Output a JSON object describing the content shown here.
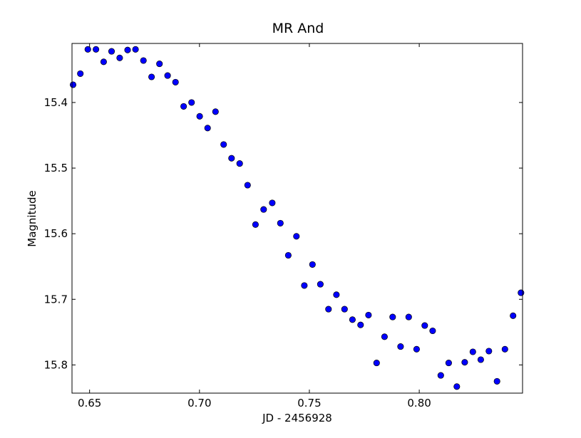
{
  "chart_data": {
    "type": "scatter",
    "title": "MR And",
    "xlabel": "JD - 2456928",
    "ylabel": "Magnitude",
    "xlim": [
      0.642,
      0.847
    ],
    "ylim": [
      15.843,
      15.31
    ],
    "y_inverted": true,
    "grid": false,
    "marker_color": "#0000ff",
    "marker_edge_color": "#000000",
    "x_ticks": [
      0.65,
      0.7,
      0.75,
      0.8
    ],
    "x_tick_labels": [
      "0.65",
      "0.70",
      "0.75",
      "0.80"
    ],
    "y_ticks": [
      15.4,
      15.5,
      15.6,
      15.7,
      15.8
    ],
    "y_tick_labels": [
      "15.4",
      "15.5",
      "15.6",
      "15.7",
      "15.8"
    ],
    "x": [
      0.6425,
      0.6458,
      0.6492,
      0.6529,
      0.6564,
      0.66,
      0.6637,
      0.6673,
      0.6709,
      0.6745,
      0.6782,
      0.6818,
      0.6855,
      0.6891,
      0.6928,
      0.6964,
      0.7001,
      0.7037,
      0.7073,
      0.711,
      0.7146,
      0.7183,
      0.7219,
      0.7255,
      0.7292,
      0.7331,
      0.7368,
      0.7404,
      0.7441,
      0.7477,
      0.7514,
      0.755,
      0.7587,
      0.7623,
      0.766,
      0.7696,
      0.7733,
      0.7769,
      0.7806,
      0.7842,
      0.7879,
      0.7915,
      0.7952,
      0.7988,
      0.8025,
      0.8061,
      0.8098,
      0.8134,
      0.8171,
      0.8207,
      0.8244,
      0.828,
      0.8317,
      0.8354,
      0.839,
      0.8427,
      0.8463
    ],
    "y": [
      15.373,
      15.356,
      15.319,
      15.319,
      15.338,
      15.322,
      15.332,
      15.32,
      15.319,
      15.336,
      15.361,
      15.341,
      15.359,
      15.369,
      15.406,
      15.4,
      15.421,
      15.439,
      15.414,
      15.464,
      15.485,
      15.493,
      15.526,
      15.586,
      15.563,
      15.553,
      15.584,
      15.633,
      15.604,
      15.679,
      15.647,
      15.677,
      15.715,
      15.693,
      15.715,
      15.731,
      15.739,
      15.724,
      15.797,
      15.757,
      15.727,
      15.772,
      15.727,
      15.776,
      15.74,
      15.748,
      15.816,
      15.797,
      15.833,
      15.796,
      15.78,
      15.792,
      15.779,
      15.825,
      15.776,
      15.725,
      15.69
    ]
  }
}
